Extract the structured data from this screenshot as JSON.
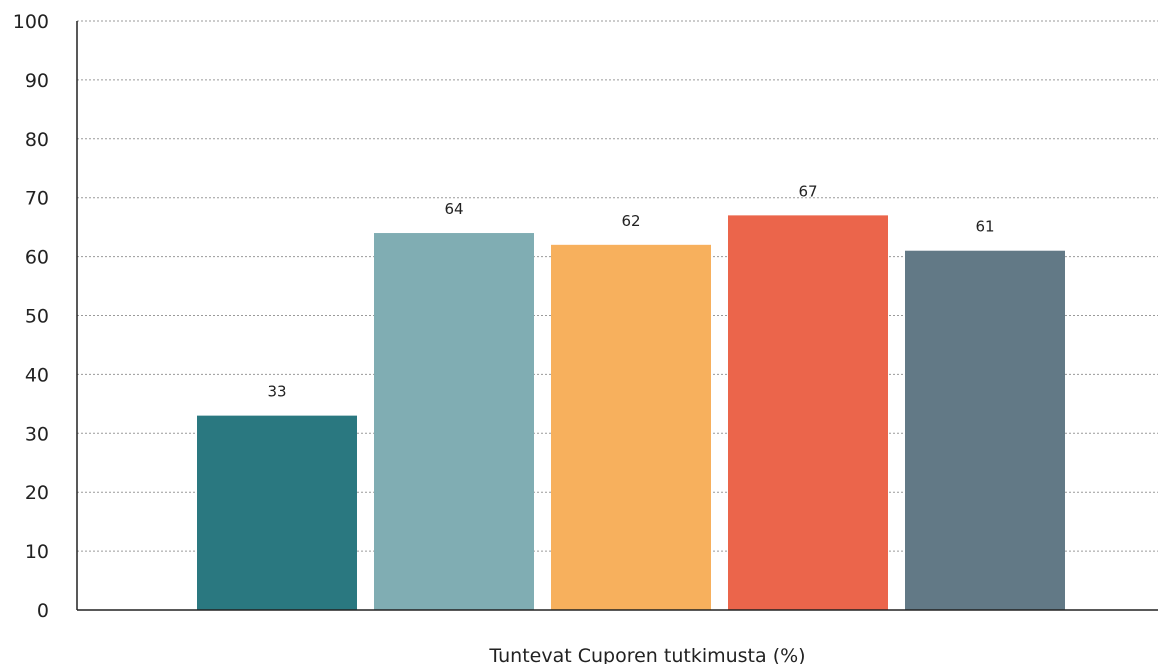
{
  "chart_data": {
    "type": "bar",
    "title": "",
    "xlabel": "Tuntevat Cuporen tutkimusta (%)",
    "ylabel": "",
    "ylim": [
      0,
      100
    ],
    "yticks": [
      0,
      10,
      20,
      30,
      40,
      50,
      60,
      70,
      80,
      90,
      100
    ],
    "grid": true,
    "legend": "none",
    "values": [
      33,
      64,
      62,
      67,
      61
    ],
    "colors": [
      "#2a7880",
      "#80adb3",
      "#f7b05d",
      "#eb654b",
      "#627986"
    ]
  }
}
